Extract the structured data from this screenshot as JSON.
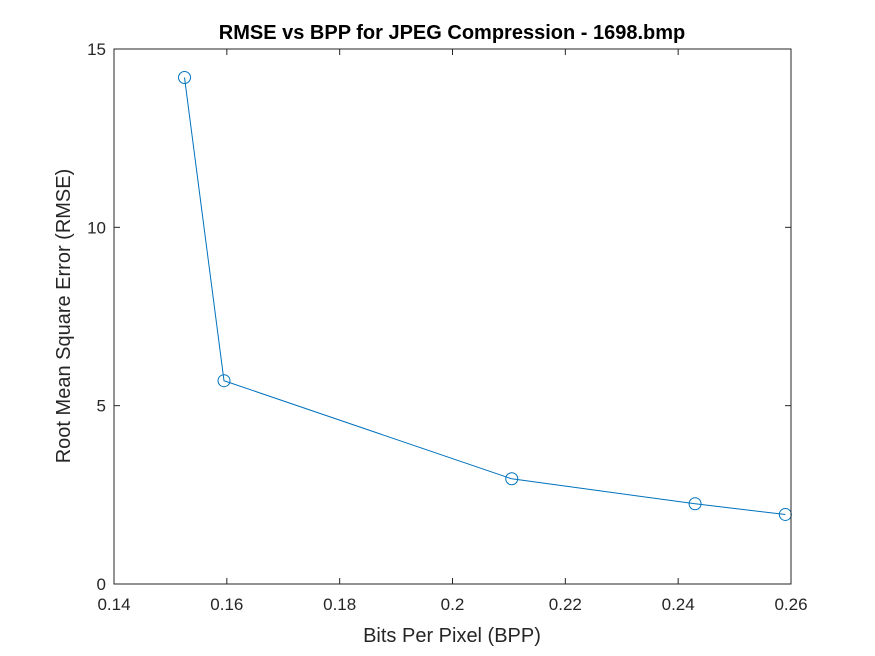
{
  "chart_data": {
    "type": "line",
    "title": "RMSE vs BPP for JPEG Compression - 1698.bmp",
    "xlabel": "Bits Per Pixel (BPP)",
    "ylabel": "Root Mean Square Error (RMSE)",
    "xlim": [
      0.14,
      0.26
    ],
    "ylim": [
      0,
      15
    ],
    "xticks": [
      0.14,
      0.16,
      0.18,
      0.2,
      0.22,
      0.24,
      0.26
    ],
    "xtick_labels": [
      "0.14",
      "0.16",
      "0.18",
      "0.2",
      "0.22",
      "0.24",
      "0.26"
    ],
    "yticks": [
      0,
      5,
      10,
      15
    ],
    "ytick_labels": [
      "0",
      "5",
      "10",
      "15"
    ],
    "grid": false,
    "marker": "circle",
    "series": [
      {
        "color": "#0072BD",
        "x": [
          0.1525,
          0.1595,
          0.2105,
          0.243,
          0.259
        ],
        "y": [
          14.2,
          5.7,
          2.95,
          2.25,
          1.95
        ]
      }
    ]
  }
}
